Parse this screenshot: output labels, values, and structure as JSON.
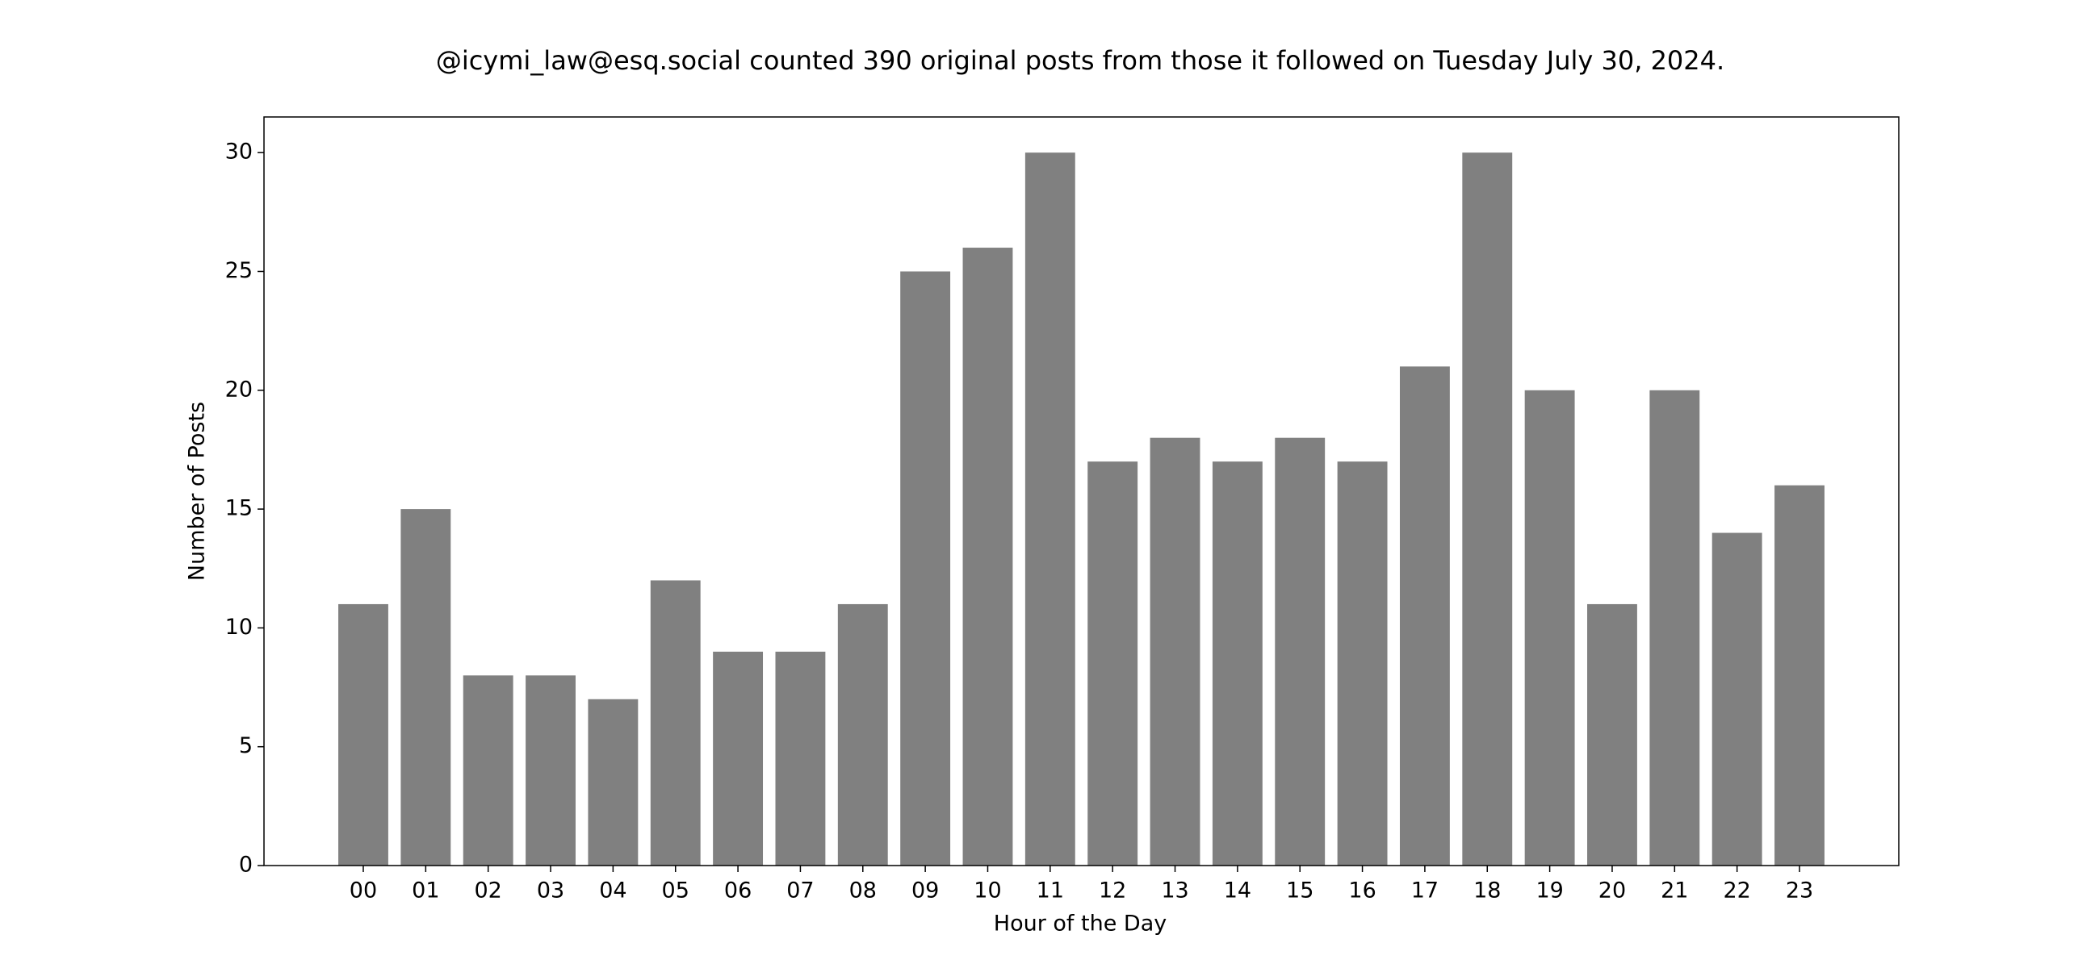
{
  "chart_data": {
    "type": "bar",
    "title": "@icymi_law@esq.social counted 390 original posts from those it followed on Tuesday July 30, 2024.",
    "xlabel": "Hour of the Day",
    "ylabel": "Number of Posts",
    "categories": [
      "00",
      "01",
      "02",
      "03",
      "04",
      "05",
      "06",
      "07",
      "08",
      "09",
      "10",
      "11",
      "12",
      "13",
      "14",
      "15",
      "16",
      "17",
      "18",
      "19",
      "20",
      "21",
      "22",
      "23"
    ],
    "values": [
      11,
      15,
      8,
      8,
      7,
      12,
      9,
      9,
      11,
      25,
      26,
      30,
      17,
      18,
      17,
      18,
      17,
      21,
      30,
      20,
      11,
      20,
      14,
      16
    ],
    "color": "#808080",
    "ylim": [
      0,
      31.5
    ],
    "yticks": [
      0,
      5,
      10,
      15,
      20,
      25,
      30
    ],
    "grid": false
  }
}
